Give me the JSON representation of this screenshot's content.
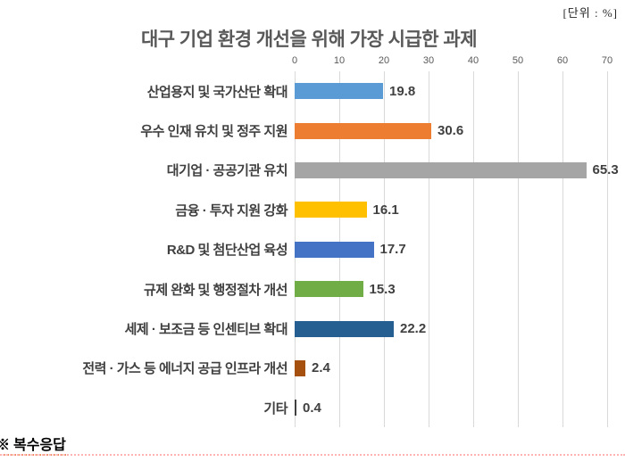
{
  "unit_label": "[단위 : %]",
  "note": "※ 복수응답",
  "chart_data": {
    "type": "bar",
    "orientation": "horizontal",
    "title": "대구 기업 환경 개선을 위해 가장 시급한 과제",
    "categories": [
      "산업용지 및 국가산단 확대",
      "우수 인재 유치 및 정주 지원",
      "대기업 · 공공기관 유치",
      "금융 · 투자 지원 강화",
      "R&D 및 첨단산업 육성",
      "규제 완화 및 행정절차 개선",
      "세제 · 보조금 등 인센티브 확대",
      "전력 · 가스 등 에너지 공급 인프라 개선",
      "기타"
    ],
    "values": [
      19.8,
      30.6,
      65.3,
      16.1,
      17.7,
      15.3,
      22.2,
      2.4,
      0.4
    ],
    "bar_colors": [
      "#5B9BD5",
      "#ED7D31",
      "#A5A5A5",
      "#FFC000",
      "#4472C4",
      "#70AD47",
      "#255E91",
      "#A6500F",
      "#404040"
    ],
    "x_ticks": [
      0,
      10,
      20,
      30,
      40,
      50,
      60,
      70
    ],
    "xlim": [
      0,
      70
    ],
    "unit": "%",
    "grid": true,
    "legend": false,
    "value_labels": true
  },
  "theme": {
    "background": "#FFFFFF",
    "title_color": "#595959",
    "label_color": "#404040",
    "tick_color": "#595959",
    "gridline_color": "#D9D9D9",
    "note_underline_color": "#E98C5A",
    "bottom_line_color": "#FFB3B3"
  }
}
